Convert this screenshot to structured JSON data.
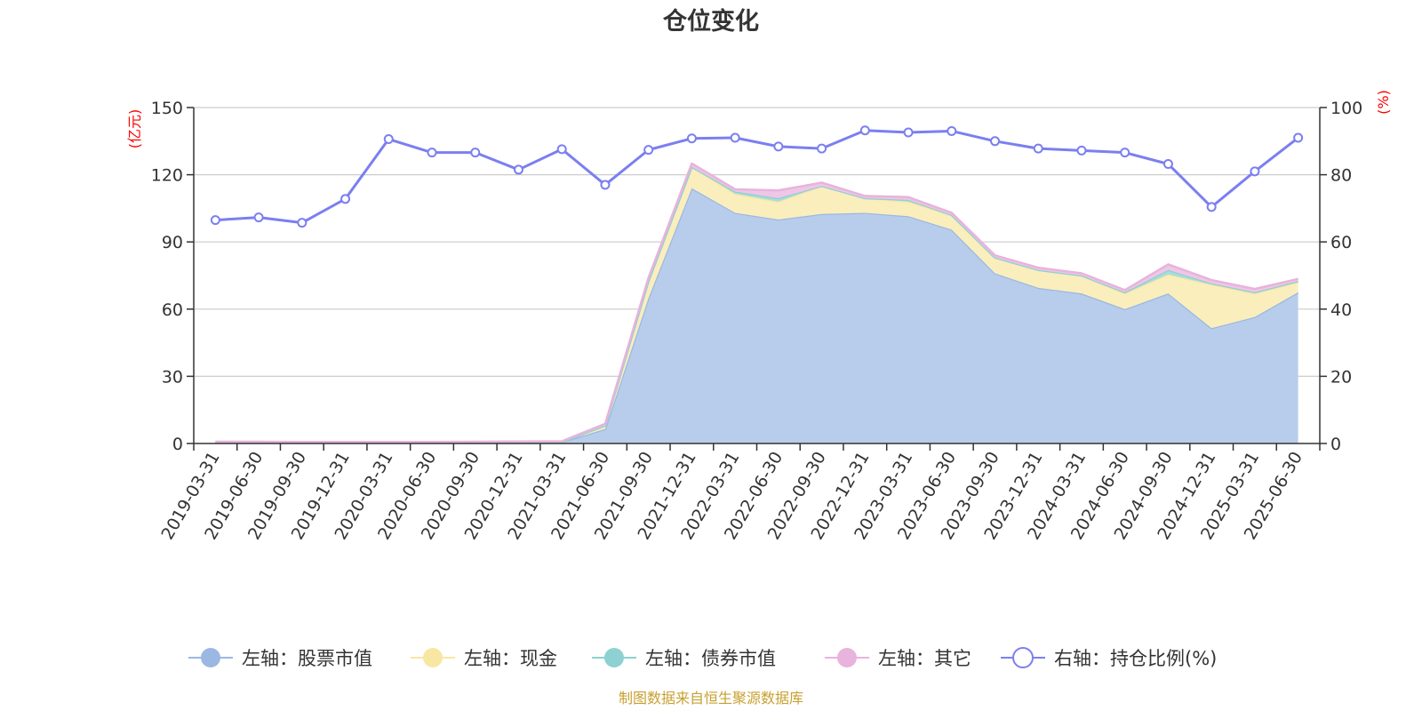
{
  "chart_data": {
    "type": "area",
    "title": "仓位变化",
    "left_unit": "(亿元)",
    "right_unit": "(%)",
    "source": "制图数据来自恒生聚源数据库",
    "x": [
      "2019-03-31",
      "2019-06-30",
      "2019-09-30",
      "2019-12-31",
      "2020-03-31",
      "2020-06-30",
      "2020-09-30",
      "2020-12-31",
      "2021-03-31",
      "2021-06-30",
      "2021-09-30",
      "2021-12-31",
      "2022-03-31",
      "2022-06-30",
      "2022-09-30",
      "2022-12-31",
      "2023-03-31",
      "2023-06-30",
      "2023-09-30",
      "2023-12-31",
      "2024-03-31",
      "2024-06-30",
      "2024-09-30",
      "2024-12-31",
      "2025-03-31",
      "2025-06-30"
    ],
    "y_left": {
      "min": 0,
      "max": 150,
      "ticks": [
        0,
        30,
        60,
        90,
        120,
        150
      ]
    },
    "y_right": {
      "min": 0,
      "max": 100,
      "ticks": [
        0,
        20,
        40,
        60,
        80,
        100
      ]
    },
    "grid": true,
    "legend_position": "bottom",
    "series": [
      {
        "name": "左轴：股票市值",
        "axis": "left",
        "stack": true,
        "color": "#9bb8e2",
        "fill": "#b8cdeb",
        "values": [
          0.4,
          0.4,
          0.3,
          0.3,
          0.3,
          0.3,
          0.4,
          0.5,
          0.6,
          6.5,
          65,
          114,
          103,
          100,
          102.5,
          103,
          101.5,
          95.5,
          76,
          69.5,
          67,
          60,
          67,
          51.5,
          56.5,
          67.5
        ]
      },
      {
        "name": "左轴：现金",
        "axis": "left",
        "stack": true,
        "color": "#f7e7a3",
        "fill": "#faeebd",
        "values": [
          0.1,
          0.1,
          0.1,
          0.1,
          0.1,
          0.1,
          0.1,
          0.1,
          0.1,
          1.5,
          7.5,
          9.5,
          8.5,
          8.0,
          12.5,
          6.5,
          6.5,
          6.5,
          7.0,
          8.0,
          8.0,
          7.0,
          8.5,
          19.5,
          10.5,
          4.5
        ]
      },
      {
        "name": "左轴：债券市值",
        "axis": "left",
        "stack": true,
        "color": "#8dd1d2",
        "fill": "#a8dcdc",
        "values": [
          0,
          0,
          0,
          0,
          0,
          0,
          0,
          0,
          0,
          0,
          0,
          0,
          1.0,
          1.5,
          0,
          0,
          0.8,
          0,
          0,
          0,
          0,
          0.5,
          2.0,
          0.5,
          0.5,
          0.5
        ]
      },
      {
        "name": "左轴：其它",
        "axis": "left",
        "stack": true,
        "color": "#e8b3dc",
        "fill": "#efc6e6",
        "values": [
          0.3,
          0.3,
          0.3,
          0.3,
          0.3,
          0.3,
          0.3,
          0.3,
          0.3,
          0.8,
          1.5,
          1.5,
          1.0,
          3.5,
          1.5,
          1.0,
          1.2,
          1.0,
          1.0,
          1.0,
          1.0,
          1.0,
          2.5,
          1.5,
          1.5,
          1.0
        ]
      },
      {
        "name": "右轴：持仓比例(%)",
        "axis": "right",
        "stack": false,
        "color": "#7b7ff0",
        "values": [
          66.5,
          67.3,
          65.7,
          72.8,
          90.6,
          86.6,
          86.6,
          81.5,
          87.6,
          77.0,
          87.4,
          90.8,
          91.0,
          88.4,
          87.8,
          93.2,
          92.6,
          93.0,
          90.0,
          87.8,
          87.2,
          86.6,
          83.2,
          70.4,
          81.0,
          91.0
        ]
      }
    ]
  }
}
